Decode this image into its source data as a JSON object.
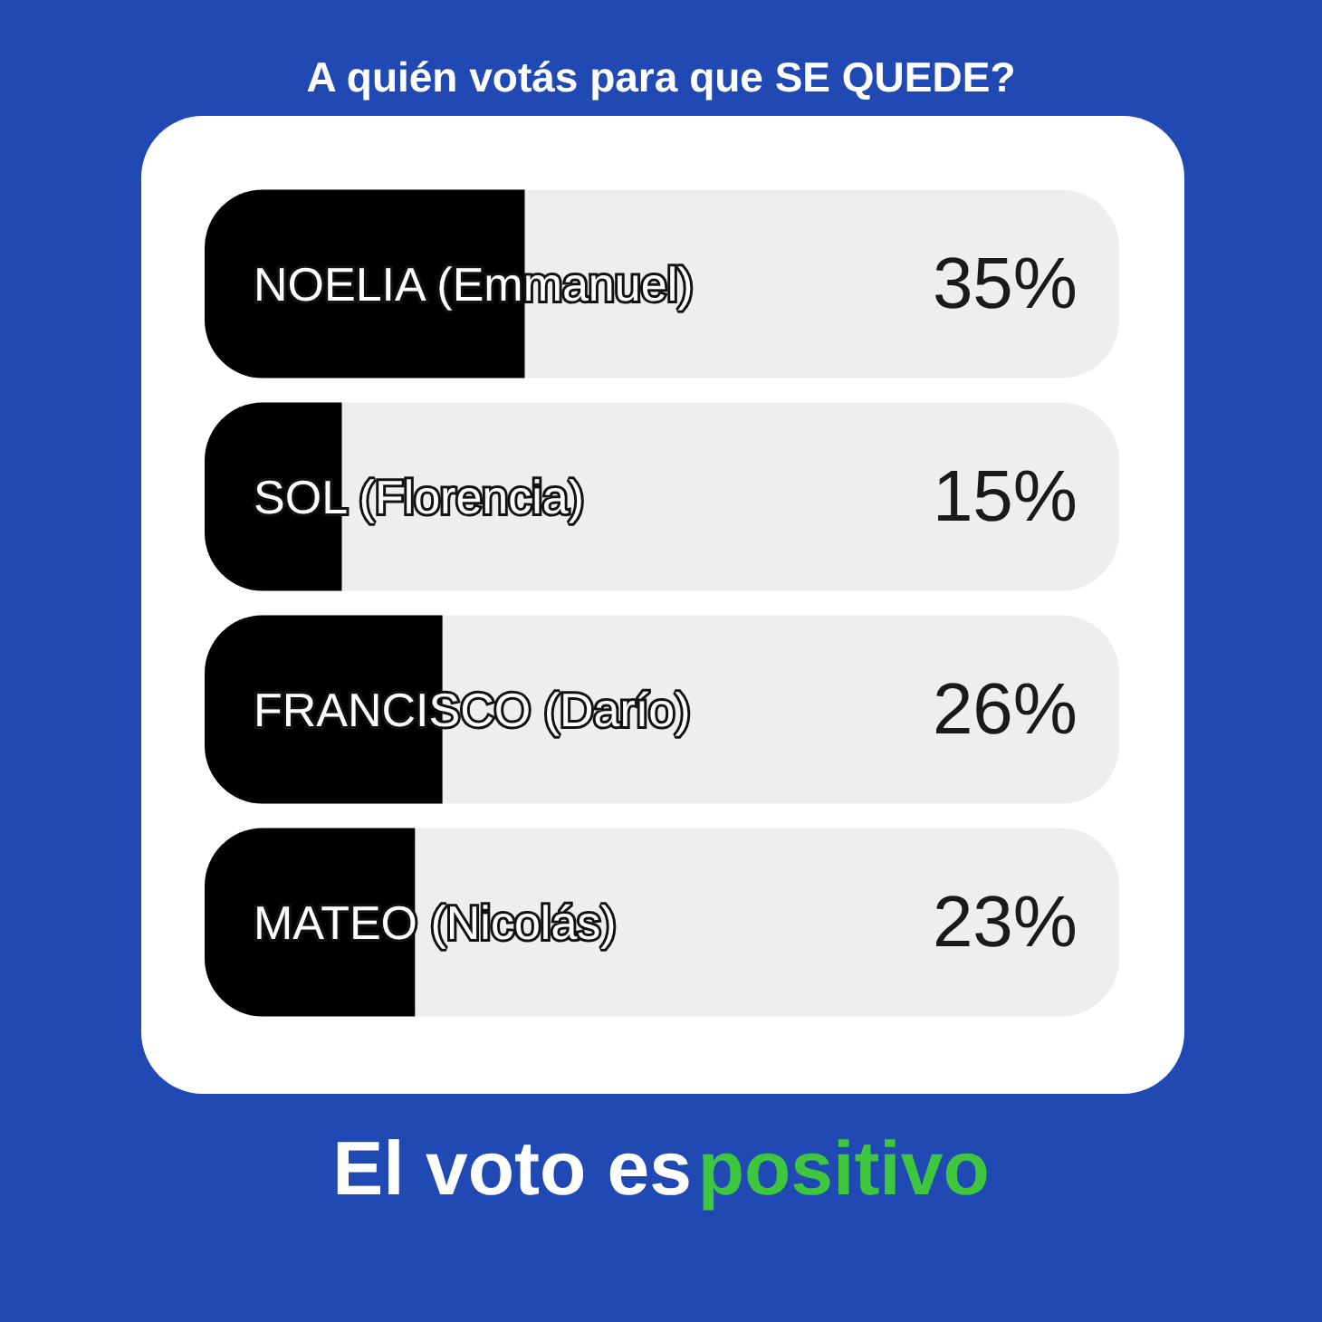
{
  "chart_data": {
    "type": "bar",
    "orientation": "horizontal",
    "title": "A quién votás para que SE QUEDE?",
    "categories": [
      "NOELIA (Emmanuel)",
      "SOL (Florencia)",
      "FRANCISCO (Darío)",
      "MATEO (Nicolás)"
    ],
    "values": [
      35,
      15,
      26,
      23
    ],
    "value_labels": [
      "35%",
      "15%",
      "26%",
      "23%"
    ],
    "color": "#000000",
    "xlim": [
      0,
      100
    ],
    "tick_labels": "y",
    "annotations": [
      "El voto es",
      "positivo"
    ]
  }
}
